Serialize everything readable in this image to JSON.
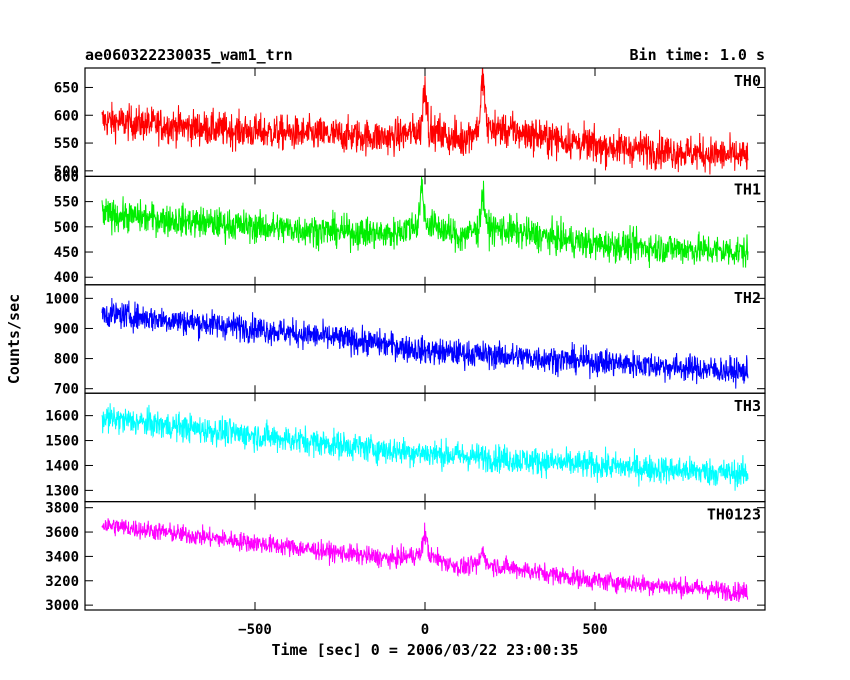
{
  "chart_data": {
    "type": "line",
    "title": "ae060322230035_wam1_trn",
    "subtitle": "Bin time: 1.0 s",
    "xlabel": "Time [sec] 0 = 2006/03/22 23:00:35",
    "ylabel": "Counts/sec",
    "xlim": [
      -1000,
      1000
    ],
    "x_ticks": [
      -500,
      0,
      500
    ],
    "x_tick_labels": [
      "−500",
      "0",
      "500"
    ],
    "x_range_data": [
      -950,
      950
    ],
    "grid": false,
    "panels": [
      {
        "name": "TH0",
        "color": "#ff0000",
        "ylim": [
          490,
          685
        ],
        "y_ticks": [
          500,
          550,
          600,
          650
        ],
        "trend": [
          [
            -950,
            590
          ],
          [
            -500,
            570
          ],
          [
            -100,
            560
          ],
          [
            0,
            575
          ],
          [
            100,
            555
          ],
          [
            170,
            580
          ],
          [
            500,
            545
          ],
          [
            950,
            525
          ]
        ],
        "noise": 28,
        "spikes": [
          {
            "x": 0,
            "y": 685
          },
          {
            "x": 170,
            "y": 700
          }
        ]
      },
      {
        "name": "TH1",
        "color": "#00ee00",
        "ylim": [
          385,
          600
        ],
        "y_ticks": [
          400,
          450,
          500,
          550,
          600
        ],
        "trend": [
          [
            -950,
            525
          ],
          [
            -500,
            500
          ],
          [
            -100,
            485
          ],
          [
            0,
            510
          ],
          [
            100,
            480
          ],
          [
            170,
            500
          ],
          [
            500,
            465
          ],
          [
            950,
            450
          ]
        ],
        "noise": 28,
        "spikes": [
          {
            "x": -10,
            "y": 600
          },
          {
            "x": 170,
            "y": 590
          }
        ]
      },
      {
        "name": "TH2",
        "color": "#0000ff",
        "ylim": [
          685,
          1045
        ],
        "y_ticks": [
          700,
          800,
          900,
          1000
        ],
        "trend": [
          [
            -950,
            950
          ],
          [
            -500,
            900
          ],
          [
            -100,
            845
          ],
          [
            0,
            825
          ],
          [
            500,
            790
          ],
          [
            950,
            755
          ]
        ],
        "noise": 40,
        "spikes": []
      },
      {
        "name": "TH3",
        "color": "#00ffff",
        "ylim": [
          1255,
          1690
        ],
        "y_ticks": [
          1300,
          1400,
          1500,
          1600
        ],
        "trend": [
          [
            -950,
            1590
          ],
          [
            -500,
            1520
          ],
          [
            -100,
            1460
          ],
          [
            0,
            1450
          ],
          [
            500,
            1400
          ],
          [
            950,
            1365
          ]
        ],
        "noise": 50,
        "spikes": []
      },
      {
        "name": "TH0123",
        "color": "#ff00ff",
        "ylim": [
          2960,
          3850
        ],
        "y_ticks": [
          3000,
          3200,
          3400,
          3600,
          3800
        ],
        "trend": [
          [
            -950,
            3660
          ],
          [
            -500,
            3510
          ],
          [
            -100,
            3380
          ],
          [
            0,
            3420
          ],
          [
            100,
            3310
          ],
          [
            170,
            3340
          ],
          [
            500,
            3200
          ],
          [
            950,
            3105
          ]
        ],
        "noise": 70,
        "spikes": [
          {
            "x": 0,
            "y": 3660
          },
          {
            "x": 170,
            "y": 3500
          }
        ]
      }
    ]
  }
}
